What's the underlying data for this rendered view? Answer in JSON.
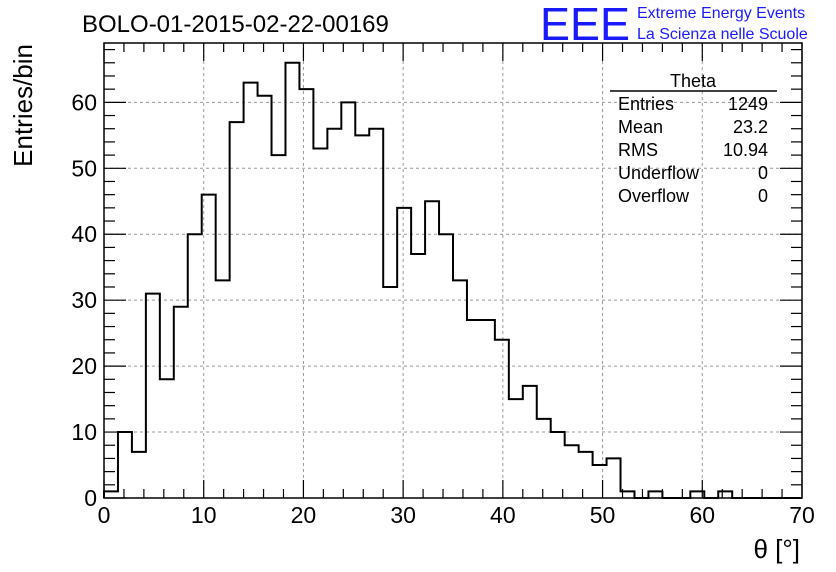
{
  "chart_data": {
    "type": "bar",
    "title": "BOLO-01-2015-02-22-00169",
    "xlabel": "θ [°]",
    "ylabel": "Entries/bin",
    "xlim": [
      0,
      70
    ],
    "ylim": [
      0,
      69
    ],
    "grid": true,
    "bin_width": 1.4,
    "x_ticks": [
      0,
      10,
      20,
      30,
      40,
      50,
      60,
      70
    ],
    "y_ticks": [
      0,
      10,
      20,
      30,
      40,
      50,
      60
    ],
    "values": [
      1,
      10,
      7,
      31,
      18,
      29,
      40,
      46,
      33,
      57,
      63,
      61,
      52,
      66,
      62,
      53,
      56,
      60,
      55,
      56,
      32,
      44,
      37,
      45,
      40,
      33,
      27,
      27,
      24,
      15,
      17,
      12,
      10,
      8,
      7,
      5,
      6,
      1,
      0,
      1,
      0,
      0,
      1,
      0,
      1,
      0,
      0,
      0,
      0,
      0
    ],
    "stats": {
      "title": "Theta",
      "rows": [
        {
          "label": "Entries",
          "value": "1249"
        },
        {
          "label": "Mean",
          "value": "23.2"
        },
        {
          "label": "RMS",
          "value": "10.94"
        },
        {
          "label": "Underflow",
          "value": "0"
        },
        {
          "label": "Overflow",
          "value": "0"
        }
      ]
    }
  },
  "logo": {
    "mark": "EEE",
    "line1": "Extreme Energy Events",
    "line2": "La Scienza nelle Scuole",
    "color": "#1a1aff"
  },
  "colors": {
    "hist_line": "#000000",
    "grid": "#9a9a9a"
  }
}
